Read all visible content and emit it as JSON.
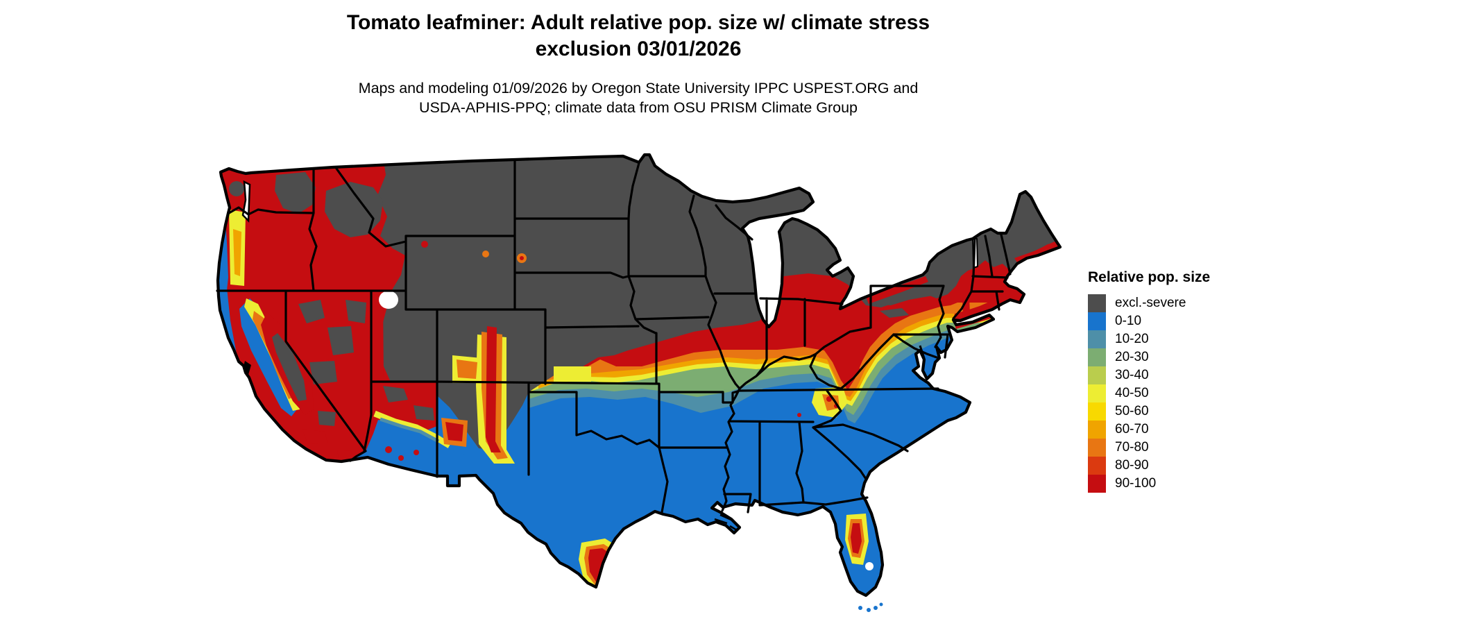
{
  "title": {
    "line1": "Tomato leafminer: Adult relative pop. size w/ climate stress",
    "line2": "exclusion 03/01/2026"
  },
  "subtitle": {
    "line1": "Maps and modeling 01/09/2026 by Oregon State University IPPC USPEST.ORG and",
    "line2": "USDA-APHIS-PPQ; climate data from OSU PRISM Climate Group"
  },
  "legend": {
    "title": "Relative pop. size",
    "items": [
      {
        "label": "excl.-severe",
        "color": "#4D4D4D"
      },
      {
        "label": "0-10",
        "color": "#1874CD"
      },
      {
        "label": "10-20",
        "color": "#4E8FA8"
      },
      {
        "label": "20-30",
        "color": "#7CAD72"
      },
      {
        "label": "30-40",
        "color": "#BACD4D"
      },
      {
        "label": "40-50",
        "color": "#EDED33"
      },
      {
        "label": "50-60",
        "color": "#F8D900"
      },
      {
        "label": "60-70",
        "color": "#F0A400"
      },
      {
        "label": "70-80",
        "color": "#E87613"
      },
      {
        "label": "80-90",
        "color": "#DB3A10"
      },
      {
        "label": "90-100",
        "color": "#C50D11"
      }
    ]
  },
  "map": {
    "region_shown": "Continental United States",
    "background": "#FFFFFF",
    "boundary_color": "#000000",
    "water_color": "#FFFFFF"
  }
}
